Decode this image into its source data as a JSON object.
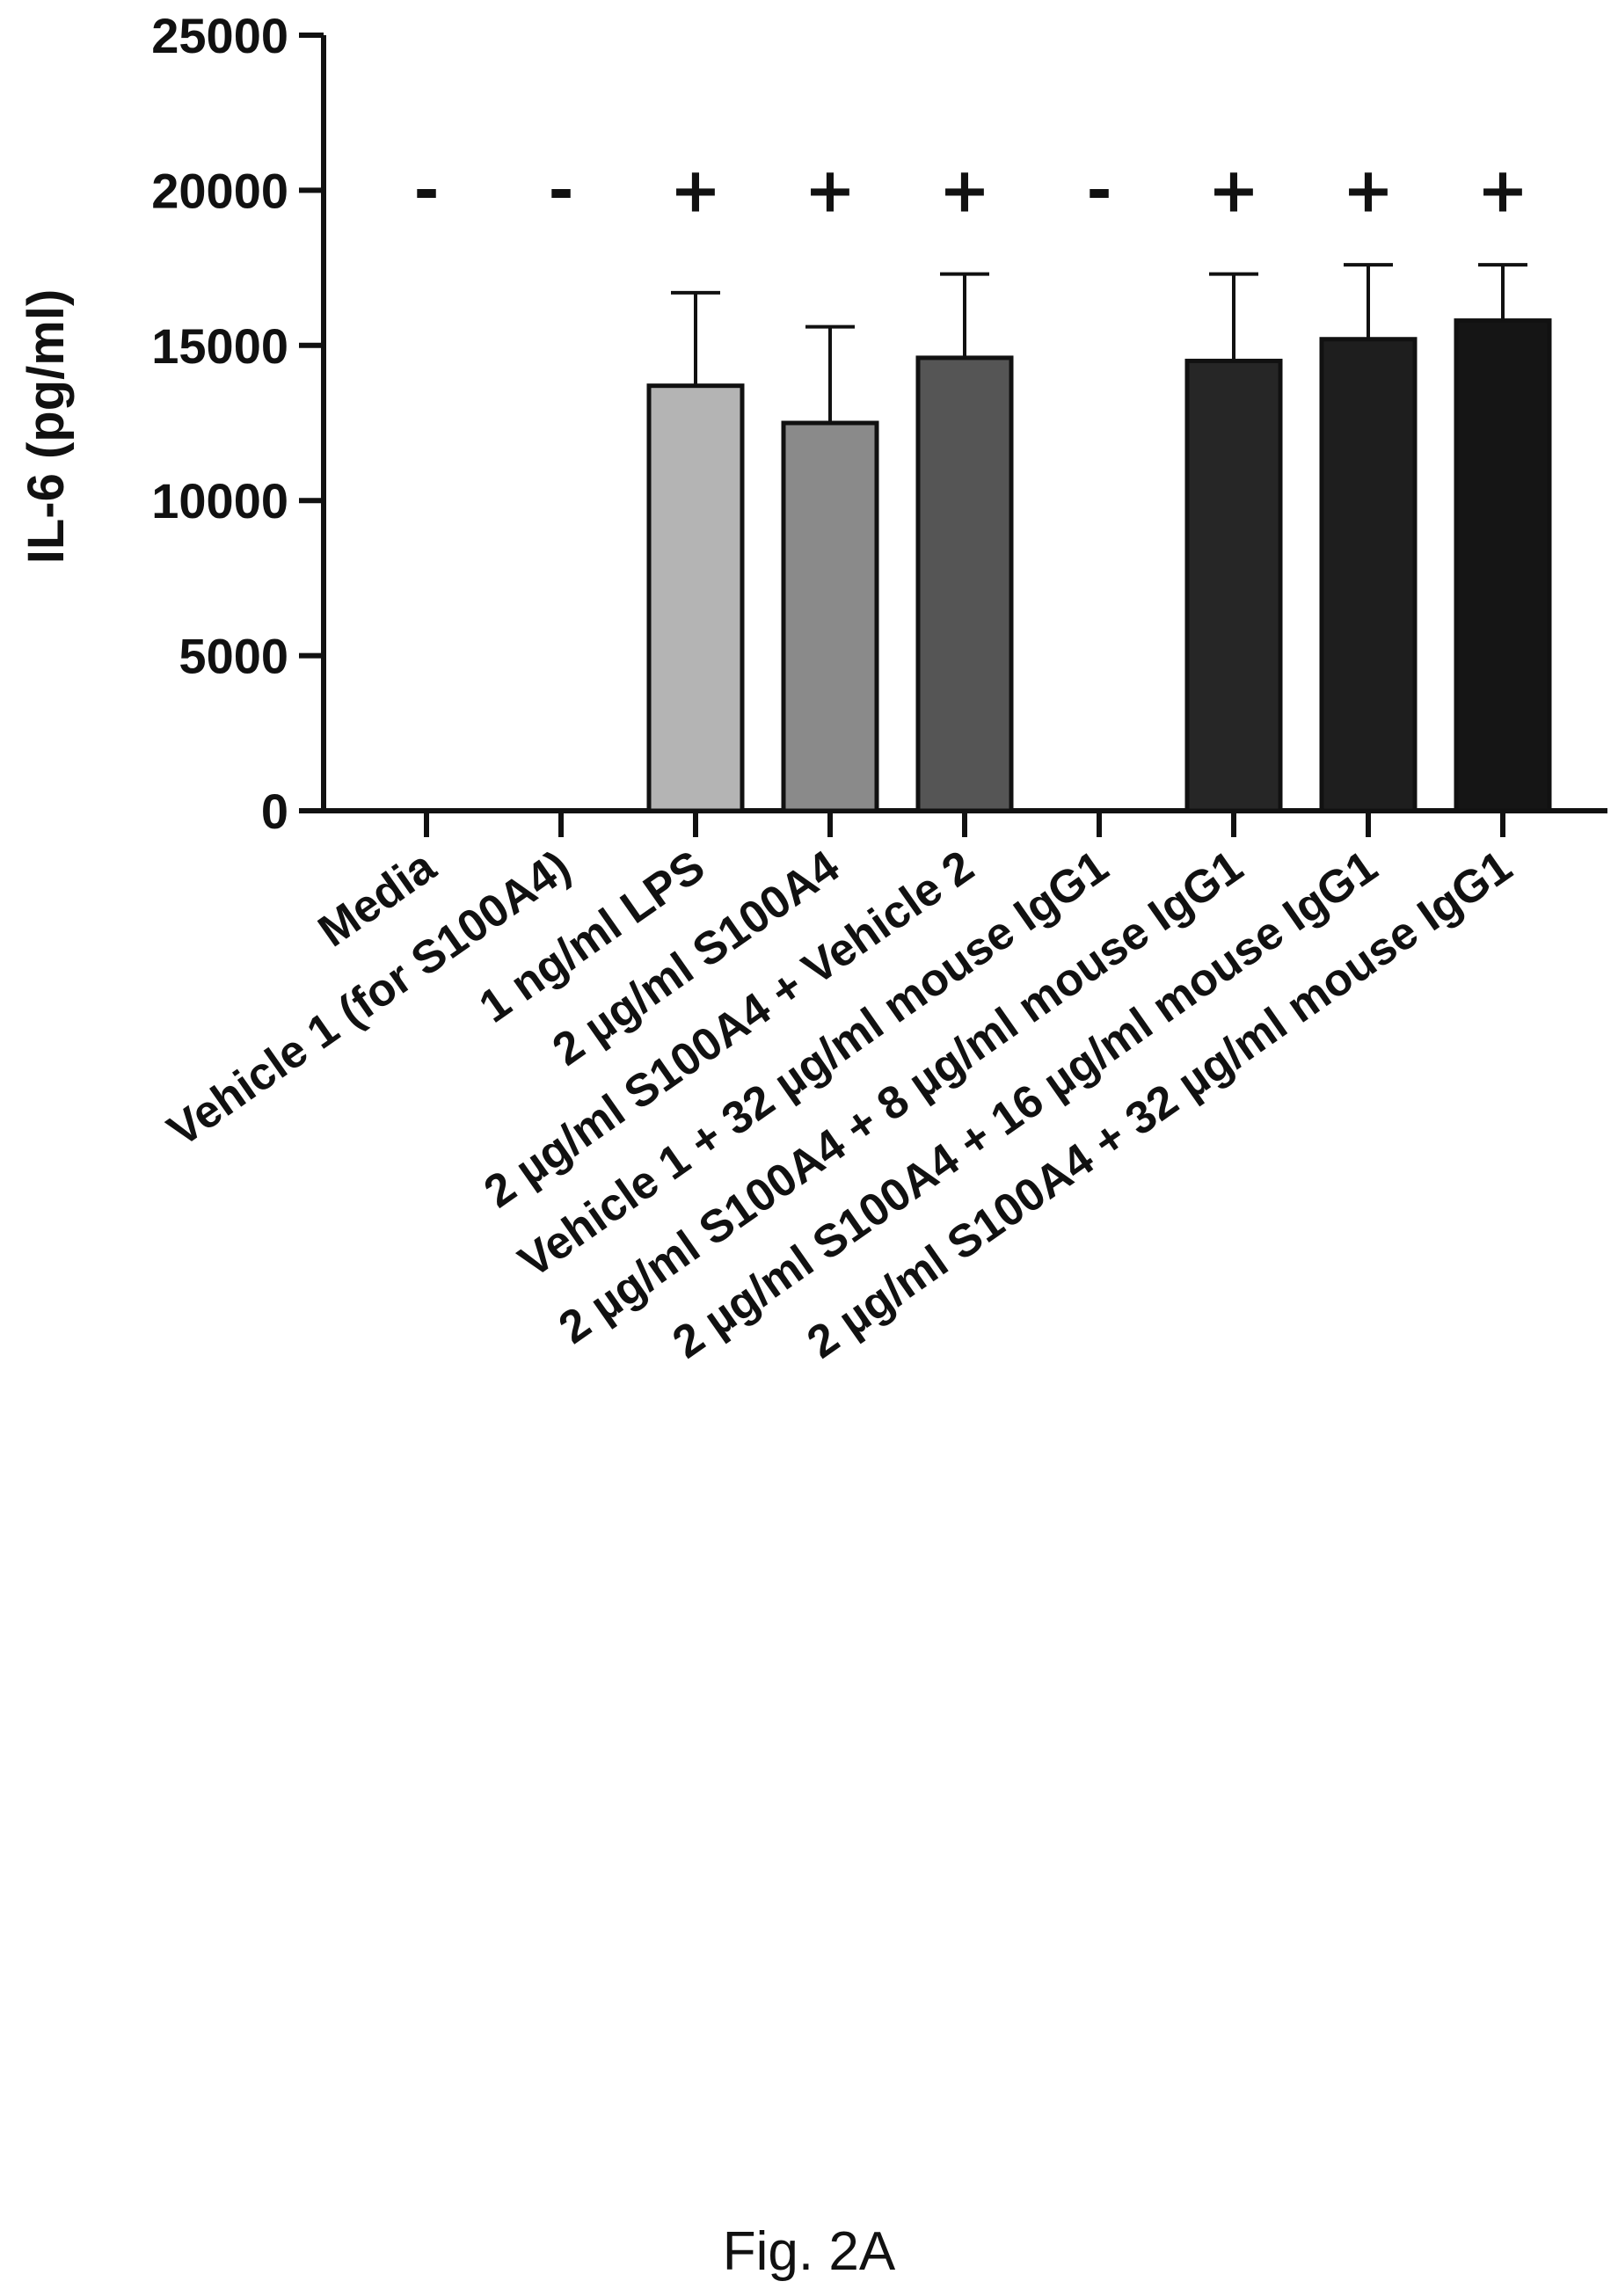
{
  "chart_data": {
    "type": "bar",
    "title": "",
    "xlabel": "",
    "ylabel": "IL-6 (pg/ml)",
    "ylim": [
      0,
      25000
    ],
    "yticks": [
      0,
      5000,
      10000,
      15000,
      20000,
      25000
    ],
    "ytick_labels": [
      "0",
      "5000",
      "10000",
      "15000",
      "20000",
      "25000"
    ],
    "categories": [
      "Media",
      "Vehicle 1 (for S100A4)",
      "1 ng/ml LPS",
      "2 µg/ml S100A4",
      "2 µg/ml S100A4 + Vehicle 2",
      "Vehicle 1 + 32 µg/ml mouse IgG1",
      "2 µg/ml S100A4 + 8 µg/ml mouse IgG1",
      "2 µg/ml S100A4 + 16 µg/ml mouse IgG1",
      "2 µg/ml S100A4 + 32 µg/ml mouse IgG1"
    ],
    "values": [
      0,
      0,
      13700,
      12500,
      14600,
      0,
      14500,
      15200,
      15800
    ],
    "error_upper": [
      0,
      0,
      16700,
      15600,
      17300,
      0,
      17300,
      17600,
      17600
    ],
    "signs": [
      "-",
      "-",
      "+",
      "+",
      "+",
      "-",
      "+",
      "+",
      "+"
    ],
    "bar_colors": [
      "#ffffff",
      "#ffffff",
      "#b4b4b4",
      "#8a8a8a",
      "#555555",
      "#ffffff",
      "#262626",
      "#1e1e1e",
      "#151515"
    ],
    "grid": false
  },
  "figure": {
    "caption": "Fig. 2A"
  }
}
